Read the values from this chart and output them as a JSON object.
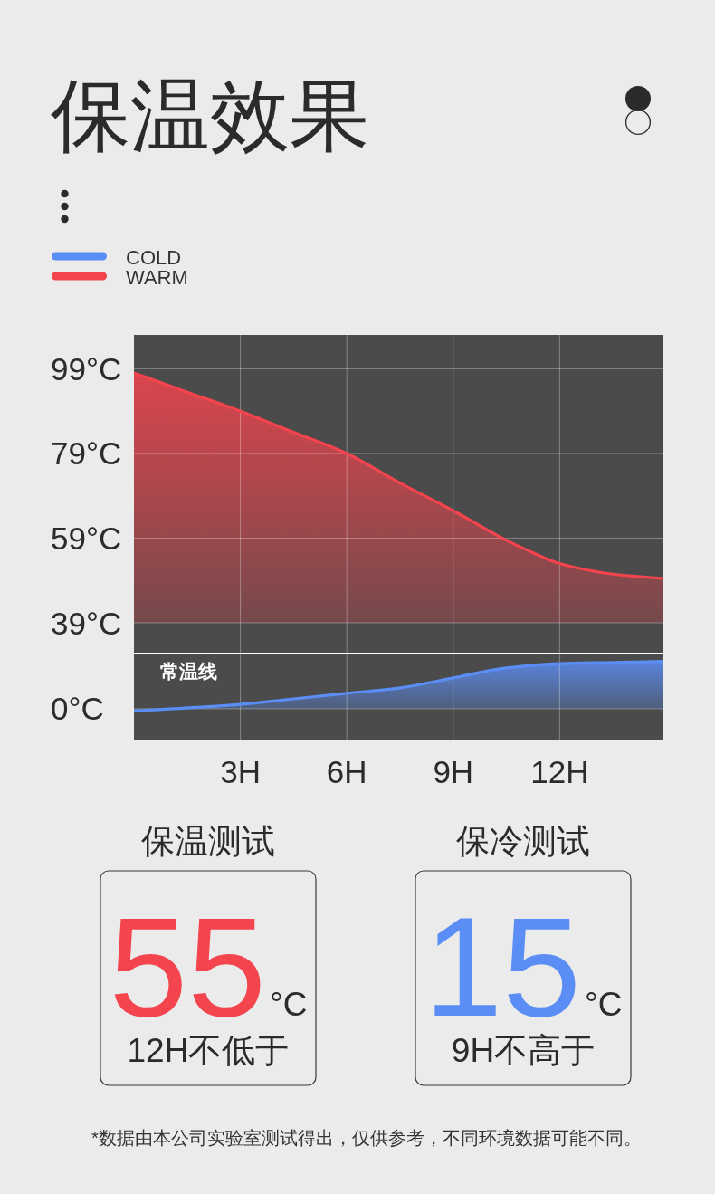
{
  "chart_data": [
    {
      "type": "area",
      "title": "保温效果",
      "xlim": [
        0,
        14.9
      ],
      "xticks": [
        {
          "value": 3,
          "label": null
        },
        {
          "value": 6,
          "label": null
        },
        {
          "value": 9,
          "label": null
        },
        {
          "value": 12,
          "label": null
        }
      ],
      "ylim": [
        39,
        107
      ],
      "yticks": [
        {
          "value": 59,
          "label": "59°C"
        },
        {
          "value": 79,
          "label": "79°C"
        },
        {
          "value": 99,
          "label": "99°C"
        }
      ],
      "grid": true,
      "legend": "top left",
      "tick_labels": "y",
      "series": [
        {
          "name": "WARM",
          "color": "#f4444e",
          "x": [
            0,
            1.5,
            3,
            4.5,
            6,
            7.5,
            9,
            10.5,
            11,
            12,
            13.5,
            14.9
          ],
          "values": [
            98,
            93.5,
            89,
            84,
            79,
            72,
            65.5,
            58.5,
            56.5,
            53,
            50.5,
            49.5
          ]
        }
      ]
    },
    {
      "type": "area",
      "xlim": [
        0,
        14.9
      ],
      "xticks": [
        {
          "value": 3,
          "label": "3H"
        },
        {
          "value": 6,
          "label": "6H"
        },
        {
          "value": 9,
          "label": "9H"
        },
        {
          "value": 12,
          "label": "12H"
        }
      ],
      "ylim": [
        -14,
        39
      ],
      "yticks": [
        {
          "value": 0,
          "label": "0°C"
        },
        {
          "value": 39,
          "label": "39°C"
        }
      ],
      "grid": true,
      "legend": "top left",
      "series": [
        {
          "name": "COLD",
          "color": "#5b8ef5",
          "x": [
            0,
            3,
            4.5,
            6,
            7.5,
            9,
            10.5,
            12,
            13.5,
            14.9
          ],
          "values": [
            -1,
            2,
            4.5,
            7,
            9.5,
            14,
            18.5,
            20.5,
            21,
            21.5
          ]
        }
      ],
      "ref_lines": [
        {
          "axis": "y",
          "value": 25,
          "label": "常温线",
          "color": "#ffffff"
        }
      ],
      "annotations": [
        "*数据由本公司实验室测试得出，仅供参考，不同环境数据可能不同。"
      ]
    },
    {
      "type": "other",
      "title": "保温测试",
      "annotations": [
        "55",
        "°C",
        "12H不低于"
      ]
    },
    {
      "type": "other",
      "title": "保冷测试",
      "annotations": [
        "15",
        "°C",
        "9H不高于"
      ]
    }
  ]
}
